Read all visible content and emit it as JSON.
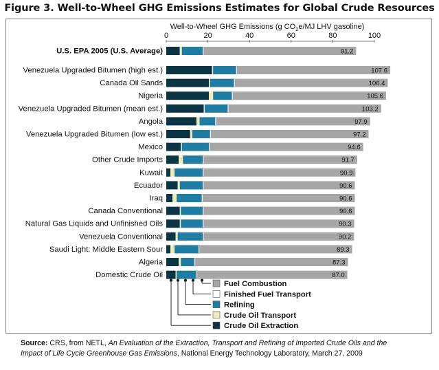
{
  "title": "Figure 3. Well-to-Wheel GHG Emissions Estimates for Global Crude Resources",
  "source": {
    "label": "Source:",
    "line1_pre": " CRS, from NETL, ",
    "line1_italic": "An Evaluation of the Extraction, Transport and Refining of Imported Crude Oils and the",
    "line2_italic": "Impact of Life Cycle Greenhouse Gas Emissions",
    "line2_post": ", National Energy Technology Laboratory, March 27, 2009"
  },
  "colors": {
    "extraction": "#0b3544",
    "crude_transport": "#f0ebb8",
    "refining": "#1f7ca3",
    "fuel_transport": "#ffffff",
    "combustion": "#a6a6a6"
  },
  "chart_data": {
    "type": "bar",
    "orientation": "horizontal",
    "stacked": true,
    "xlabel_prefix": "Well-to-Wheel GHG Emissions (g CO",
    "xlabel_sub": "2",
    "xlabel_suffix": "e/MJ LHV gasoline)",
    "xlim": [
      0,
      100
    ],
    "xticks": [
      0,
      20,
      40,
      60,
      80,
      100
    ],
    "grid": false,
    "legend_placement": "bottom-center",
    "categories": [
      "U.S. EPA 2005 (U.S. Average)",
      "Venezuela Upgraded Bitumen (high est.)",
      "Canada Oil Sands",
      "Nigeria",
      "Venezuela Upgraded Bitumen (mean est.)",
      "Angola",
      "Venezuela Upgraded Bitumen (low est.)",
      "Mexico",
      "Other Crude Imports",
      "Kuwait",
      "Ecuador",
      "Iraq",
      "Canada Conventional",
      "Natural Gas Liquids and Unfinished Oils",
      "Venezuela Conventional",
      "Saudi Light: Middle Eastern Sour",
      "Algeria",
      "Domestic Crude Oil"
    ],
    "totals": [
      "91.2",
      "107.6",
      "106.4",
      "105.6",
      "103.2",
      "97.9",
      "97.2",
      "94.6",
      "91.7",
      "90.9",
      "90.6",
      "90.6",
      "90.6",
      "90.3",
      "90.2",
      "89.3",
      "87.3",
      "87.0"
    ],
    "series": [
      {
        "key": "extraction",
        "name": "Crude Oil Extraction",
        "values": [
          6.5,
          22,
          20.5,
          20.5,
          18,
          14.5,
          11.5,
          7,
          6,
          2,
          5.5,
          3,
          6.5,
          6.5,
          4.5,
          2,
          6,
          4.5
        ]
      },
      {
        "key": "crude_transport",
        "name": "Crude Oil Transport",
        "values": [
          1,
          0.5,
          0.5,
          2,
          0.5,
          1.5,
          1,
          0.5,
          2,
          2,
          1,
          2,
          0.5,
          0.5,
          1,
          2,
          1,
          0.5
        ]
      },
      {
        "key": "refining",
        "name": "Refining",
        "values": [
          10,
          11,
          11.5,
          9,
          11,
          7.5,
          8.5,
          13,
          9.5,
          13.5,
          11,
          12,
          10.5,
          10.5,
          12,
          11.5,
          6.5,
          9.5
        ]
      },
      {
        "key": "fuel_transport",
        "name": "Finished Fuel Transport",
        "values": [
          0.5,
          0.5,
          0.5,
          0.5,
          0.5,
          0.5,
          0.5,
          0.5,
          0.5,
          0.5,
          0.5,
          0.5,
          0.5,
          0.5,
          0.5,
          0.5,
          0.5,
          0.5
        ]
      },
      {
        "key": "combustion",
        "name": "Fuel Combustion",
        "values": [
          73.2,
          73.6,
          73.4,
          73.6,
          73.2,
          73.9,
          75.7,
          73.6,
          73.7,
          72.9,
          72.6,
          73.1,
          72.6,
          72.3,
          72.2,
          73.3,
          73.3,
          72.0
        ]
      }
    ],
    "legend_order": [
      "combustion",
      "fuel_transport",
      "refining",
      "crude_transport",
      "extraction"
    ]
  }
}
